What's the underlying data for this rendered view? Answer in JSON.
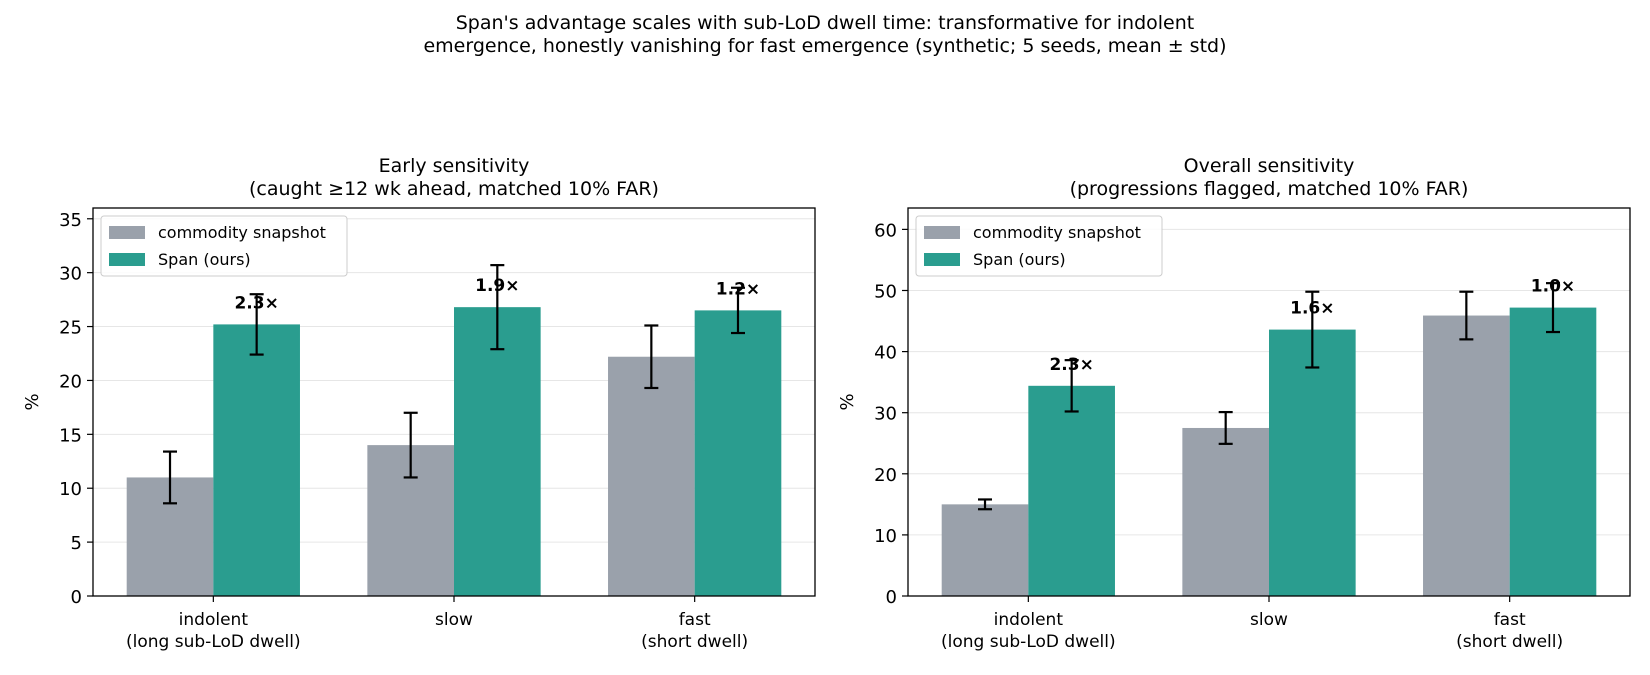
{
  "figure": {
    "suptitle_line1": "Span's advantage scales with sub-LoD dwell time: transformative for indolent",
    "suptitle_line2": "emergence, honestly vanishing for fast emergence   (synthetic; 5 seeds, mean ± std)"
  },
  "colors": {
    "commodity": "#9aa1ab",
    "span": "#2a9d8f",
    "ratio_label": "#1d2d50",
    "grid": "#e6e6e6"
  },
  "chart_data": [
    {
      "type": "bar",
      "title_line1": "Early sensitivity",
      "title_line2": "(caught ≥12 wk ahead, matched 10% FAR)",
      "ylabel": "%",
      "ylim": [
        0,
        36
      ],
      "yticks": [
        0,
        5,
        10,
        15,
        20,
        25,
        30,
        35
      ],
      "grid": "y",
      "legend_position": "top-left",
      "categories": [
        [
          "indolent",
          "(long sub-LoD dwell)"
        ],
        [
          "slow",
          ""
        ],
        [
          "fast",
          "(short dwell)"
        ]
      ],
      "series": [
        {
          "name": "commodity snapshot",
          "values": [
            11.0,
            14.0,
            22.2
          ],
          "errors": [
            2.4,
            3.0,
            2.9
          ]
        },
        {
          "name": "Span (ours)",
          "values": [
            25.2,
            26.8,
            26.5
          ],
          "errors": [
            2.8,
            3.9,
            2.1
          ]
        }
      ],
      "ratio_labels": [
        "2.3×",
        "1.9×",
        "1.2×"
      ]
    },
    {
      "type": "bar",
      "title_line1": "Overall sensitivity",
      "title_line2": "(progressions flagged, matched 10% FAR)",
      "ylabel": "%",
      "ylim": [
        0,
        63.5
      ],
      "yticks": [
        0,
        10,
        20,
        30,
        40,
        50,
        60
      ],
      "grid": "y",
      "legend_position": "top-left",
      "categories": [
        [
          "indolent",
          "(long sub-LoD dwell)"
        ],
        [
          "slow",
          ""
        ],
        [
          "fast",
          "(short dwell)"
        ]
      ],
      "series": [
        {
          "name": "commodity snapshot",
          "values": [
            15.0,
            27.5,
            45.9
          ],
          "errors": [
            0.8,
            2.6,
            3.9
          ]
        },
        {
          "name": "Span (ours)",
          "values": [
            34.4,
            43.6,
            47.2
          ],
          "errors": [
            4.2,
            6.2,
            4.0
          ]
        }
      ],
      "ratio_labels": [
        "2.3×",
        "1.6×",
        "1.0×"
      ]
    }
  ]
}
